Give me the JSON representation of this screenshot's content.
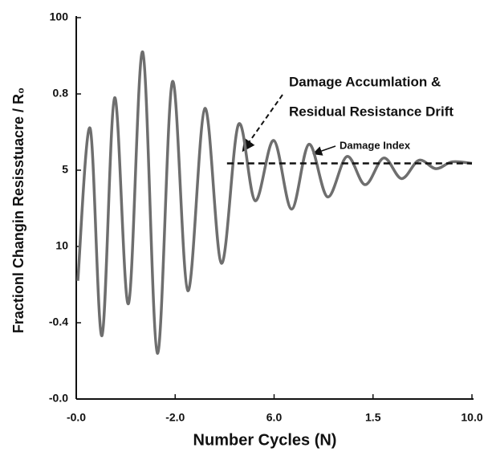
{
  "chart_data": {
    "type": "line",
    "x_label": "Number Cycles (N)",
    "y_label": "Fractionl Changin Resisstuacre / R₀",
    "xlim": [
      0,
      10
    ],
    "ylim": [
      0,
      5
    ],
    "xticks": [
      {
        "value": 0,
        "label": "-0.0"
      },
      {
        "value": 2.5,
        "label": "-2.0"
      },
      {
        "value": 5,
        "label": "6.0"
      },
      {
        "value": 7.5,
        "label": "1.5"
      },
      {
        "value": 10,
        "label": "10.0"
      }
    ],
    "yticks": [
      {
        "value": 5,
        "label": "100"
      },
      {
        "value": 4,
        "label": "0.8"
      },
      {
        "value": 3,
        "label": "5"
      },
      {
        "value": 2,
        "label": "10"
      },
      {
        "value": 1,
        "label": "-0.4"
      },
      {
        "value": 0,
        "label": "-0.0"
      }
    ],
    "x": [
      0.04,
      0.35,
      0.65,
      0.97,
      1.32,
      1.68,
      2.05,
      2.43,
      2.82,
      3.25,
      3.67,
      4.1,
      4.52,
      4.99,
      5.44,
      5.88,
      6.35,
      6.84,
      7.3,
      7.77,
      8.22,
      8.66,
      9.09,
      9.5,
      10
    ],
    "series": [
      {
        "color": "#6e6e6e",
        "values": [
          1.55,
          3.55,
          0.83,
          3.95,
          1.25,
          4.55,
          0.6,
          4.16,
          1.42,
          3.81,
          1.78,
          3.6,
          2.6,
          3.39,
          2.49,
          3.34,
          2.65,
          3.18,
          2.81,
          3.16,
          2.89,
          3.13,
          3.02,
          3.11,
          3.09
        ]
      }
    ],
    "reference_line": {
      "x": [
        3.81,
        10
      ],
      "y": 3.09
    },
    "annotations": [
      "Damage Accumlation &",
      "Residual Resistance Drift",
      "Damage Index"
    ]
  }
}
